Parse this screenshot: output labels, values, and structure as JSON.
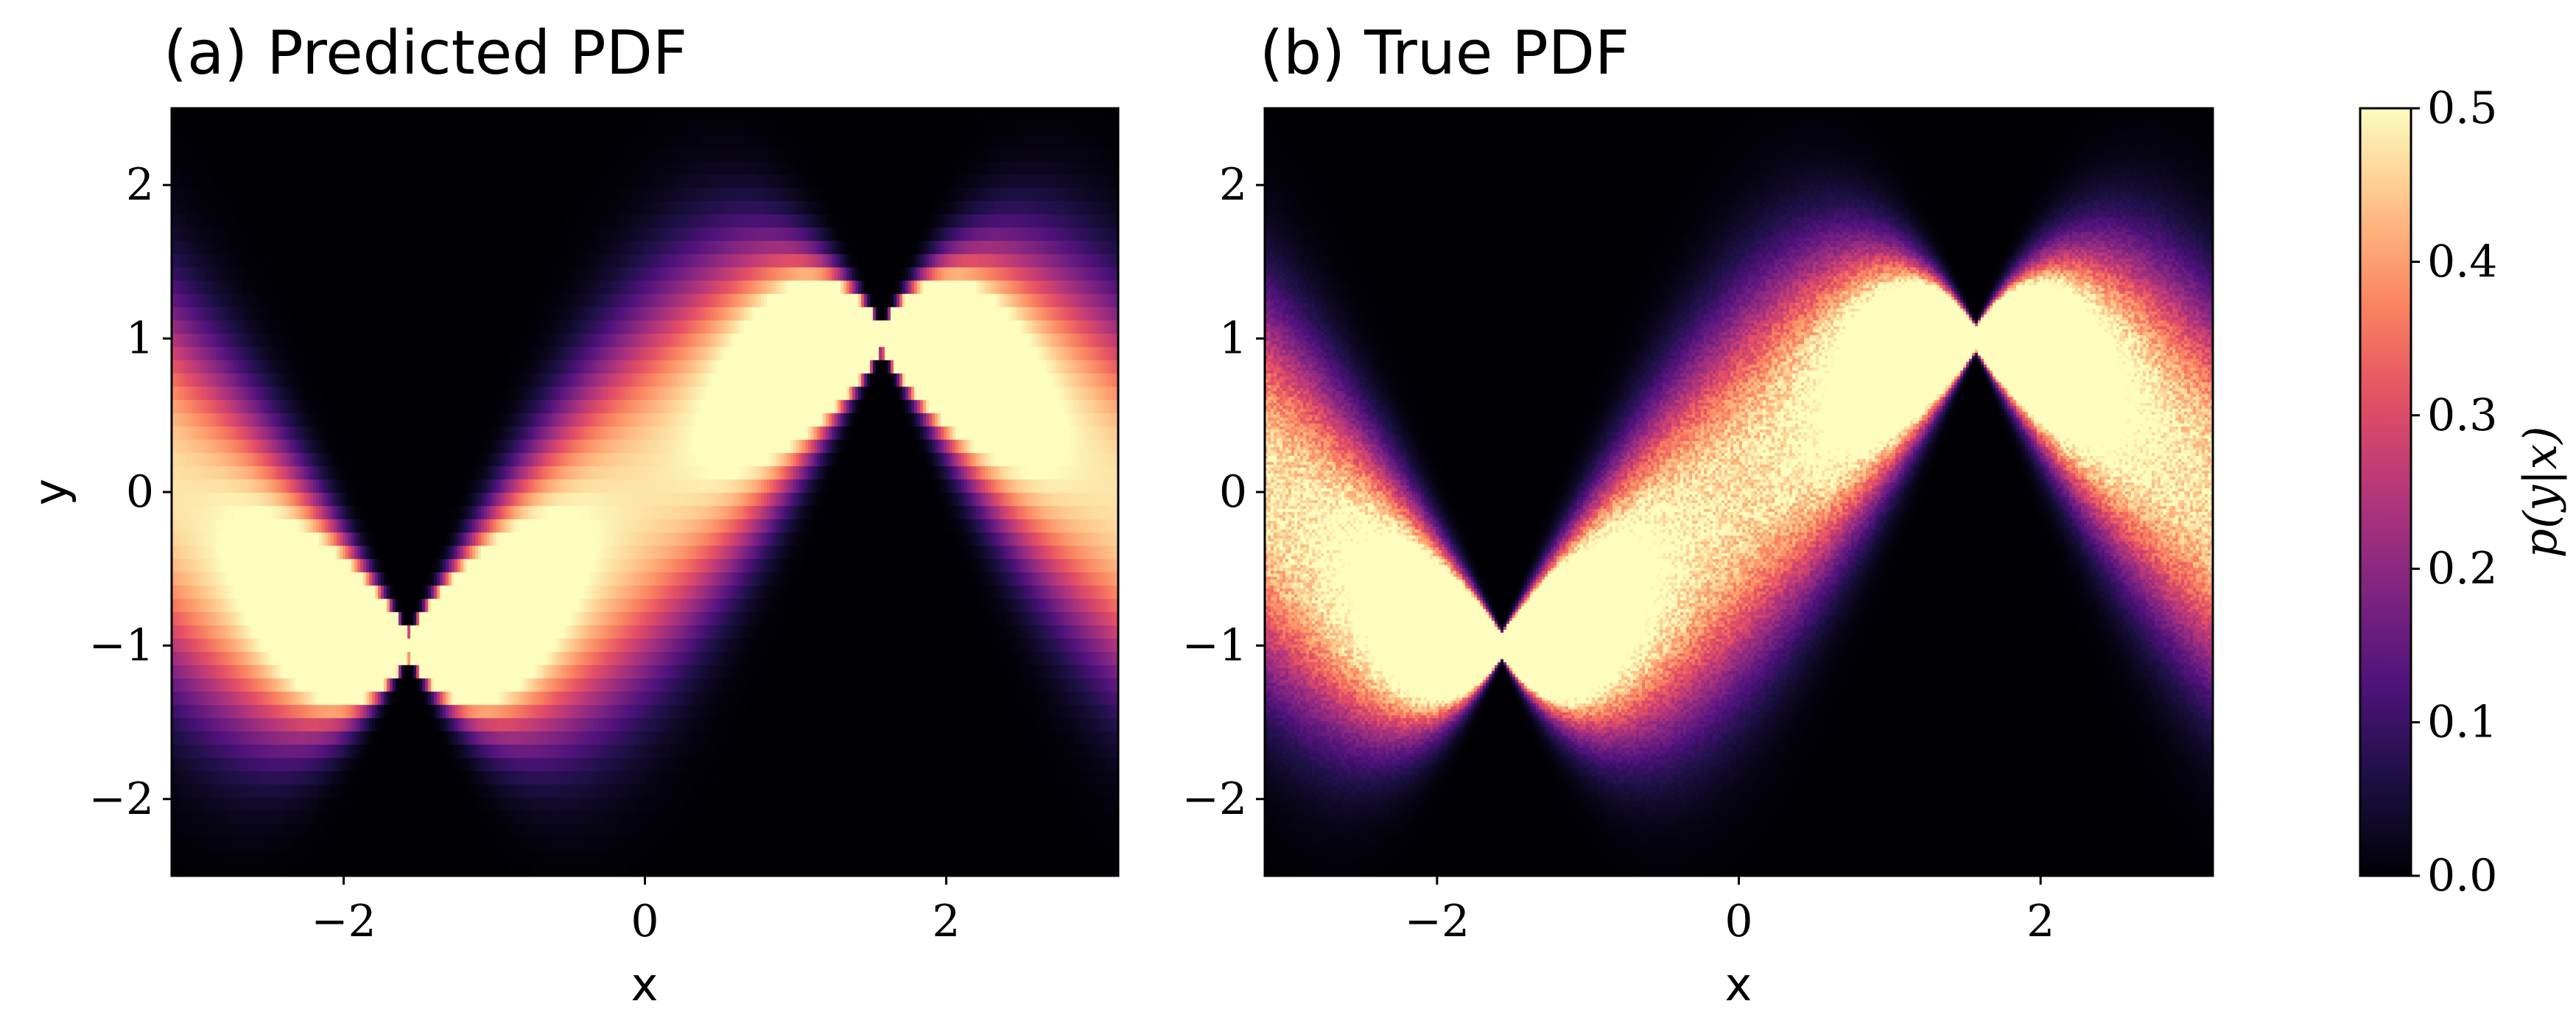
{
  "chart_data": [
    {
      "type": "heatmap",
      "title": "(a) Predicted PDF",
      "xlabel": "x",
      "ylabel": "y",
      "xlim": [
        -3.14159,
        3.14159
      ],
      "ylim": [
        -2.5,
        2.5
      ],
      "xticks": [
        -2,
        0,
        2
      ],
      "xtick_labels": [
        "−2",
        "0",
        "2"
      ],
      "yticks": [
        -2,
        -1,
        0,
        1,
        2
      ],
      "ytick_labels": [
        "−2",
        "−1",
        "0",
        "1",
        "2"
      ],
      "colormap": "magma",
      "value_range": [
        0.0,
        0.5
      ],
      "description_of_field": "p(y|x) over the grid; two crossing bands y = sin(x) ± spread, pinching at x ≈ ±π/2",
      "pinch_points": [
        [
          -1.571,
          -0.9
        ],
        [
          1.571,
          1.1
        ]
      ],
      "style": "predicted"
    },
    {
      "type": "heatmap",
      "title": "(b) True PDF",
      "xlabel": "x",
      "ylabel": "",
      "xlim": [
        -3.14159,
        3.14159
      ],
      "ylim": [
        -2.5,
        2.5
      ],
      "xticks": [
        -2,
        0,
        2
      ],
      "xtick_labels": [
        "−2",
        "0",
        "2"
      ],
      "yticks": [
        -2,
        -1,
        0,
        1,
        2
      ],
      "ytick_labels": [
        "−2",
        "−1",
        "0",
        "1",
        "2"
      ],
      "colormap": "magma",
      "value_range": [
        0.0,
        0.5
      ],
      "pinch_points": [
        [
          -1.571,
          -1.0
        ],
        [
          1.571,
          1.0
        ]
      ],
      "style": "true"
    }
  ],
  "colorbar": {
    "label": "p(y|x)",
    "ticks": [
      0.0,
      0.1,
      0.2,
      0.3,
      0.4,
      0.5
    ],
    "tick_labels": [
      "0.0",
      "0.1",
      "0.2",
      "0.3",
      "0.4",
      "0.5"
    ],
    "range": [
      0.0,
      0.5
    ],
    "colormap": "magma"
  }
}
